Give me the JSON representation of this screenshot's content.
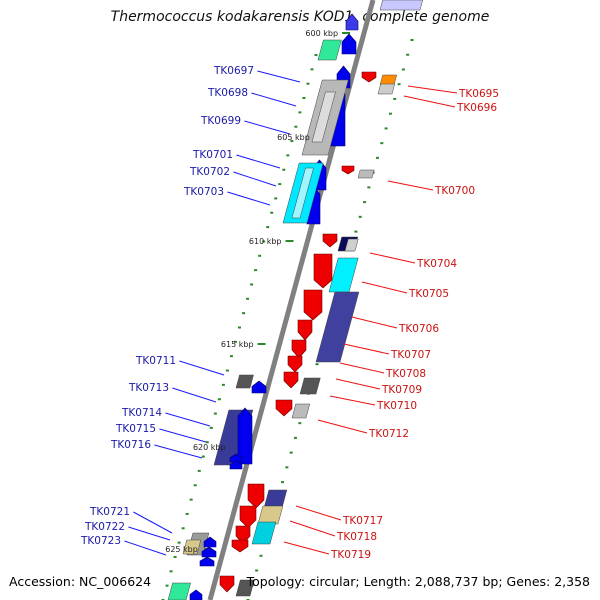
{
  "title": "Thermococcus kodakarensis KOD1, complete genome",
  "footer": {
    "accession": "Accession: NC_006624",
    "topology": "Topology: circular; Length: 2,088,737 bp; Genes: 2,358"
  },
  "colors": {
    "backbone": "#808080",
    "forward_strand": "#0000ee",
    "reverse_strand": "#ee0000",
    "forward_label": "#1a1aa8",
    "reverse_label": "#cc1111",
    "tick": "#2a8a2a"
  },
  "scale_ticks": [
    "600 kbp",
    "605 kbp",
    "610 kbp",
    "615 kbp",
    "620 kbp",
    "625 kbp"
  ],
  "forward_labels": [
    "TK0697",
    "TK0698",
    "TK0699",
    "TK0701",
    "TK0702",
    "TK0703",
    "TK0711",
    "TK0713",
    "TK0714",
    "TK0715",
    "TK0716",
    "TK0721",
    "TK0722",
    "TK0723"
  ],
  "reverse_labels": [
    "TK0695",
    "TK0696",
    "TK0700",
    "TK0704",
    "TK0705",
    "TK0706",
    "TK0707",
    "TK0708",
    "TK0709",
    "TK0710",
    "TK0712",
    "TK0717",
    "TK0718",
    "TK0719"
  ]
}
